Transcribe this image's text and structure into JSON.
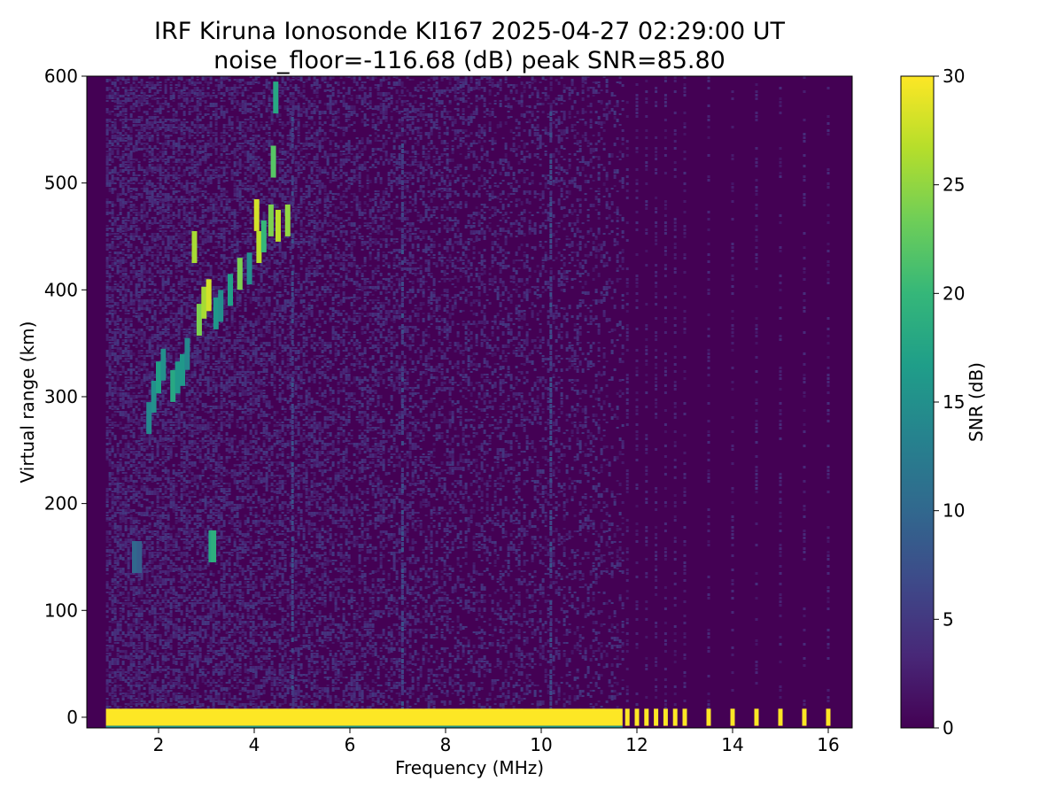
{
  "chart_data": {
    "type": "heatmap",
    "title": "IRF Kiruna Ionosonde KI167 2025-04-27 02:29:00  UT",
    "subtitle": "noise_floor=-116.68 (dB) peak SNR=85.80",
    "xlabel": "Frequency (MHz)",
    "ylabel": "Virtual range (km)",
    "colorbar_label": "SNR (dB)",
    "colormap": "viridis",
    "xlim": [
      0.5,
      16.5
    ],
    "ylim": [
      -10,
      600
    ],
    "clim": [
      0,
      30
    ],
    "x_ticks": [
      2,
      4,
      6,
      8,
      10,
      12,
      14,
      16
    ],
    "x_tick_labels": [
      "2",
      "4",
      "6",
      "8",
      "10",
      "12",
      "14",
      "16"
    ],
    "y_ticks": [
      0,
      100,
      200,
      300,
      400,
      500,
      600
    ],
    "y_tick_labels": [
      "0",
      "100",
      "200",
      "300",
      "400",
      "500",
      "600"
    ],
    "colorbar_ticks": [
      0,
      5,
      10,
      15,
      20,
      25,
      30
    ],
    "colorbar_tick_labels": [
      "0",
      "5",
      "10",
      "15",
      "20",
      "25",
      "30"
    ],
    "colorbar_colors": [
      "#440154",
      "#482878",
      "#3e4989",
      "#31688e",
      "#26828e",
      "#1f9e89",
      "#35b779",
      "#6ece58",
      "#b5de2b",
      "#fde725"
    ],
    "background_color": "#440154",
    "sweep_x_range_mhz": [
      0.9,
      16.2
    ],
    "continuous_sweep_end_mhz": 11.7,
    "discrete_frequencies_mhz": [
      11.8,
      12.0,
      12.2,
      12.4,
      12.6,
      12.8,
      13.0,
      13.5,
      14.0,
      14.5,
      15.0,
      15.5,
      16.0
    ],
    "ground_echo_km": [
      -8,
      8
    ],
    "trace_points": [
      {
        "x": 1.5,
        "y": 150,
        "snr": 10
      },
      {
        "x": 1.6,
        "y": 150,
        "snr": 9
      },
      {
        "x": 1.8,
        "y": 280,
        "snr": 14
      },
      {
        "x": 1.9,
        "y": 300,
        "snr": 15
      },
      {
        "x": 2.0,
        "y": 318,
        "snr": 17
      },
      {
        "x": 2.1,
        "y": 330,
        "snr": 15
      },
      {
        "x": 2.3,
        "y": 310,
        "snr": 18
      },
      {
        "x": 2.4,
        "y": 318,
        "snr": 16
      },
      {
        "x": 2.5,
        "y": 325,
        "snr": 16
      },
      {
        "x": 2.6,
        "y": 340,
        "snr": 14
      },
      {
        "x": 2.75,
        "y": 440,
        "snr": 26
      },
      {
        "x": 2.85,
        "y": 372,
        "snr": 24
      },
      {
        "x": 2.95,
        "y": 388,
        "snr": 26
      },
      {
        "x": 3.05,
        "y": 395,
        "snr": 28
      },
      {
        "x": 3.1,
        "y": 160,
        "snr": 18
      },
      {
        "x": 3.15,
        "y": 160,
        "snr": 19
      },
      {
        "x": 3.2,
        "y": 378,
        "snr": 16
      },
      {
        "x": 3.3,
        "y": 385,
        "snr": 15
      },
      {
        "x": 3.5,
        "y": 400,
        "snr": 17
      },
      {
        "x": 3.7,
        "y": 415,
        "snr": 24
      },
      {
        "x": 3.9,
        "y": 420,
        "snr": 15
      },
      {
        "x": 4.05,
        "y": 470,
        "snr": 28
      },
      {
        "x": 4.1,
        "y": 440,
        "snr": 27
      },
      {
        "x": 4.2,
        "y": 450,
        "snr": 20
      },
      {
        "x": 4.35,
        "y": 465,
        "snr": 24
      },
      {
        "x": 4.4,
        "y": 520,
        "snr": 22
      },
      {
        "x": 4.45,
        "y": 580,
        "snr": 18
      },
      {
        "x": 4.5,
        "y": 460,
        "snr": 27
      },
      {
        "x": 4.7,
        "y": 465,
        "snr": 25
      }
    ],
    "weak_vertical_streaks_mhz": [
      4.8,
      7.1,
      10.2
    ]
  }
}
